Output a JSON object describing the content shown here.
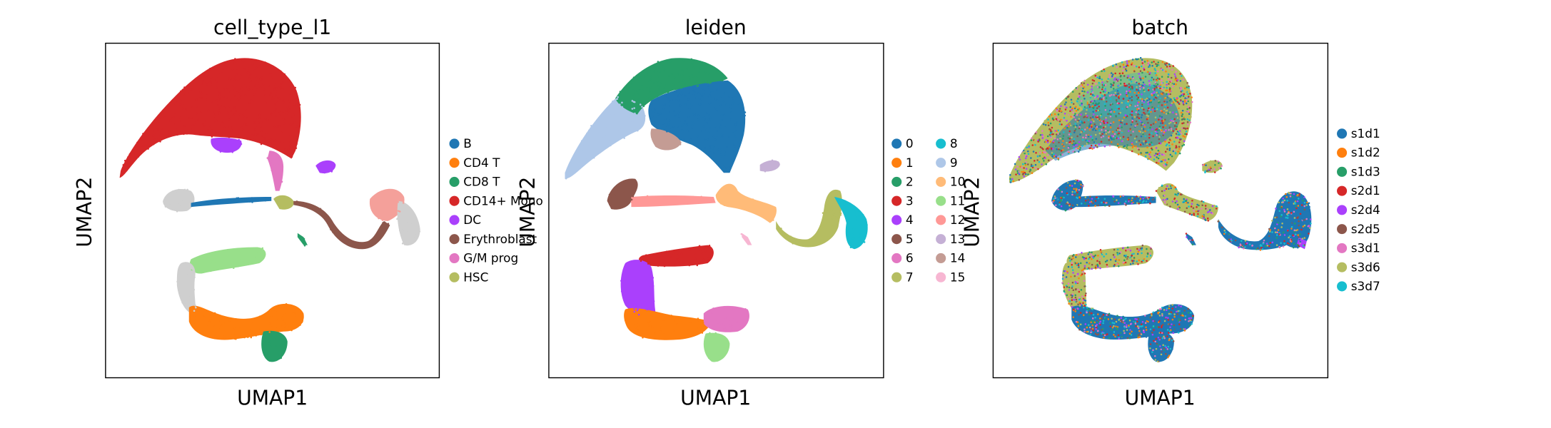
{
  "figure": {
    "panels": [
      {
        "title": "cell_type_l1",
        "xlabel": "UMAP1",
        "ylabel": "UMAP2",
        "legend": [
          {
            "label": "B",
            "color": "#1f77b4"
          },
          {
            "label": "CD4 T",
            "color": "#ff7f0e"
          },
          {
            "label": "CD8 T",
            "color": "#279e68"
          },
          {
            "label": "CD14+ Mono",
            "color": "#d62728"
          },
          {
            "label": "DC",
            "color": "#aa40fc"
          },
          {
            "label": "Erythroblast",
            "color": "#8c564b"
          },
          {
            "label": "G/M prog",
            "color": "#e377c2"
          },
          {
            "label": "HSC",
            "color": "#b5bd61"
          }
        ]
      },
      {
        "title": "leiden",
        "xlabel": "UMAP1",
        "ylabel": "UMAP2",
        "legend": [
          {
            "label": "0",
            "color": "#1f77b4"
          },
          {
            "label": "1",
            "color": "#ff7f0e"
          },
          {
            "label": "2",
            "color": "#279e68"
          },
          {
            "label": "3",
            "color": "#d62728"
          },
          {
            "label": "4",
            "color": "#aa40fc"
          },
          {
            "label": "5",
            "color": "#8c564b"
          },
          {
            "label": "6",
            "color": "#e377c2"
          },
          {
            "label": "7",
            "color": "#b5bd61"
          },
          {
            "label": "8",
            "color": "#17becf"
          },
          {
            "label": "9",
            "color": "#aec7e8"
          },
          {
            "label": "10",
            "color": "#ffbb78"
          },
          {
            "label": "11",
            "color": "#98df8a"
          },
          {
            "label": "12",
            "color": "#ff9896"
          },
          {
            "label": "13",
            "color": "#c5b0d5"
          },
          {
            "label": "14",
            "color": "#c49c94"
          },
          {
            "label": "15",
            "color": "#f7b6d2"
          }
        ]
      },
      {
        "title": "batch",
        "xlabel": "UMAP1",
        "ylabel": "UMAP2",
        "legend": [
          {
            "label": "s1d1",
            "color": "#1f77b4"
          },
          {
            "label": "s1d2",
            "color": "#ff7f0e"
          },
          {
            "label": "s1d3",
            "color": "#279e68"
          },
          {
            "label": "s2d1",
            "color": "#d62728"
          },
          {
            "label": "s2d4",
            "color": "#aa40fc"
          },
          {
            "label": "s2d5",
            "color": "#8c564b"
          },
          {
            "label": "s3d1",
            "color": "#e377c2"
          },
          {
            "label": "s3d6",
            "color": "#b5bd61"
          },
          {
            "label": "s3d7",
            "color": "#17becf"
          }
        ]
      }
    ]
  },
  "chart_data": [
    {
      "type": "scatter",
      "title": "cell_type_l1",
      "xlabel": "UMAP1",
      "ylabel": "UMAP2",
      "series": [
        {
          "name": "B",
          "color": "#1f77b4"
        },
        {
          "name": "CD4 T",
          "color": "#ff7f0e"
        },
        {
          "name": "CD8 T",
          "color": "#279e68"
        },
        {
          "name": "CD14+ Mono",
          "color": "#d62728"
        },
        {
          "name": "DC",
          "color": "#aa40fc"
        },
        {
          "name": "Erythroblast",
          "color": "#8c564b"
        },
        {
          "name": "G/M prog",
          "color": "#e377c2"
        },
        {
          "name": "HSC",
          "color": "#b5bd61"
        }
      ],
      "extra_colors": [
        "#cfcfcf",
        "#98df8a",
        "#f4a09a"
      ],
      "grid": false,
      "legend_position": "right",
      "ticks": "none"
    },
    {
      "type": "scatter",
      "title": "leiden",
      "xlabel": "UMAP1",
      "ylabel": "UMAP2",
      "series": [
        {
          "name": "0",
          "color": "#1f77b4"
        },
        {
          "name": "1",
          "color": "#ff7f0e"
        },
        {
          "name": "2",
          "color": "#279e68"
        },
        {
          "name": "3",
          "color": "#d62728"
        },
        {
          "name": "4",
          "color": "#aa40fc"
        },
        {
          "name": "5",
          "color": "#8c564b"
        },
        {
          "name": "6",
          "color": "#e377c2"
        },
        {
          "name": "7",
          "color": "#b5bd61"
        },
        {
          "name": "8",
          "color": "#17becf"
        },
        {
          "name": "9",
          "color": "#aec7e8"
        },
        {
          "name": "10",
          "color": "#ffbb78"
        },
        {
          "name": "11",
          "color": "#98df8a"
        },
        {
          "name": "12",
          "color": "#ff9896"
        },
        {
          "name": "13",
          "color": "#c5b0d5"
        },
        {
          "name": "14",
          "color": "#c49c94"
        },
        {
          "name": "15",
          "color": "#f7b6d2"
        }
      ],
      "grid": false,
      "legend_position": "right",
      "ticks": "none"
    },
    {
      "type": "scatter",
      "title": "batch",
      "xlabel": "UMAP1",
      "ylabel": "UMAP2",
      "series": [
        {
          "name": "s1d1",
          "color": "#1f77b4"
        },
        {
          "name": "s1d2",
          "color": "#ff7f0e"
        },
        {
          "name": "s1d3",
          "color": "#279e68"
        },
        {
          "name": "s2d1",
          "color": "#d62728"
        },
        {
          "name": "s2d4",
          "color": "#aa40fc"
        },
        {
          "name": "s2d5",
          "color": "#8c564b"
        },
        {
          "name": "s3d1",
          "color": "#e377c2"
        },
        {
          "name": "s3d6",
          "color": "#b5bd61"
        },
        {
          "name": "s3d7",
          "color": "#17becf"
        }
      ],
      "grid": false,
      "legend_position": "right",
      "ticks": "none"
    }
  ]
}
